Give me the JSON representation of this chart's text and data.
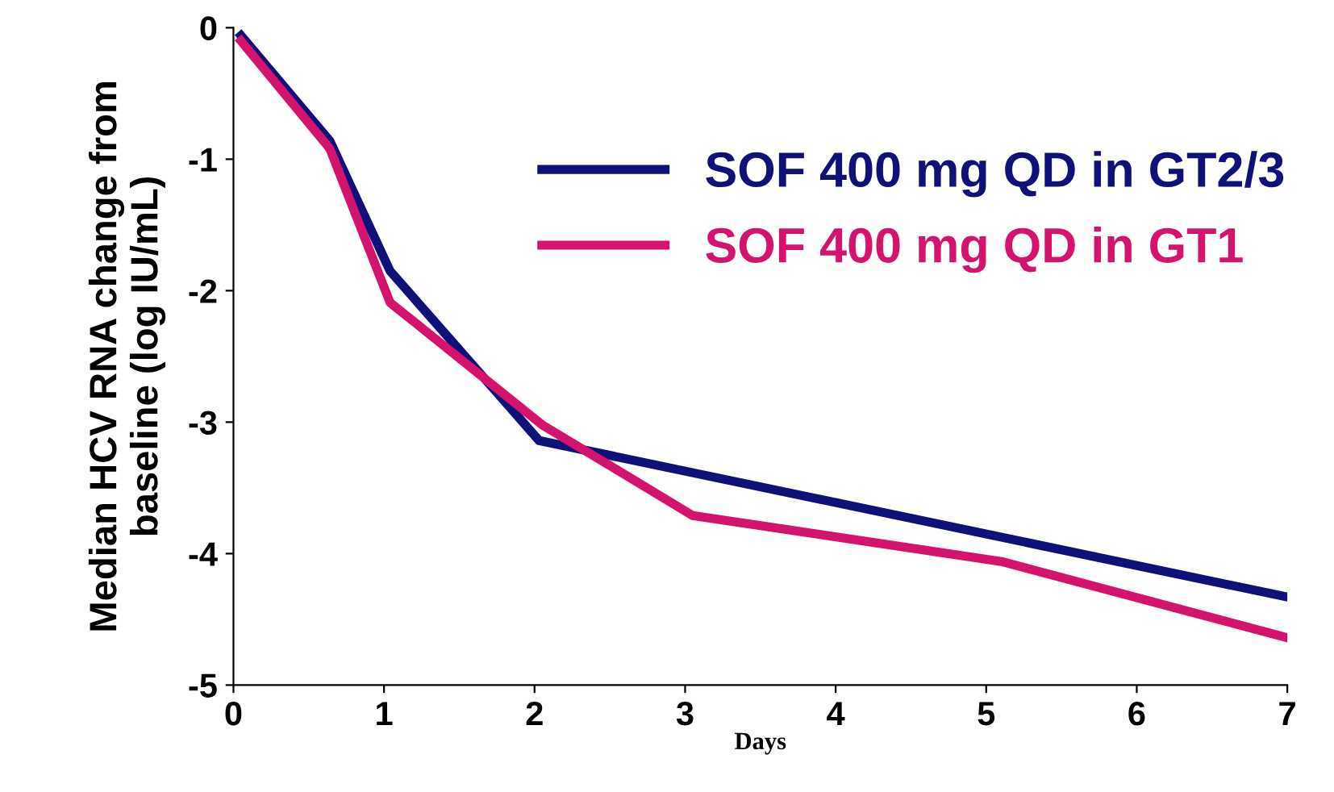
{
  "chart_data": {
    "type": "line",
    "xlabel": "Days",
    "ylabel": "Median HCV RNA change from\nbaseline (log IU/mL)",
    "xlim": [
      0,
      7
    ],
    "ylim": [
      -5,
      0
    ],
    "xticks": [
      0,
      1,
      2,
      3,
      4,
      5,
      6,
      7
    ],
    "yticks": [
      0,
      -1,
      -2,
      -3,
      -4,
      -5
    ],
    "grid": false,
    "legend": "top right",
    "marker": "none",
    "line_style": "solid",
    "series": [
      {
        "name": "SOF 400 mg QD in GT2/3",
        "color": "#10107a",
        "x": [
          0.05,
          0.64,
          1.04,
          2.03,
          7
        ],
        "values": [
          -0.06,
          -0.86,
          -1.85,
          -3.14,
          -4.33
        ]
      },
      {
        "name": "SOF 400 mg QD in GT1",
        "color": "#d4136f",
        "x": [
          0.05,
          0.64,
          1.04,
          2.05,
          3.05,
          5.1,
          7
        ],
        "values": [
          -0.1,
          -0.92,
          -2.09,
          -3.02,
          -3.71,
          -4.06,
          -4.64
        ]
      }
    ]
  }
}
